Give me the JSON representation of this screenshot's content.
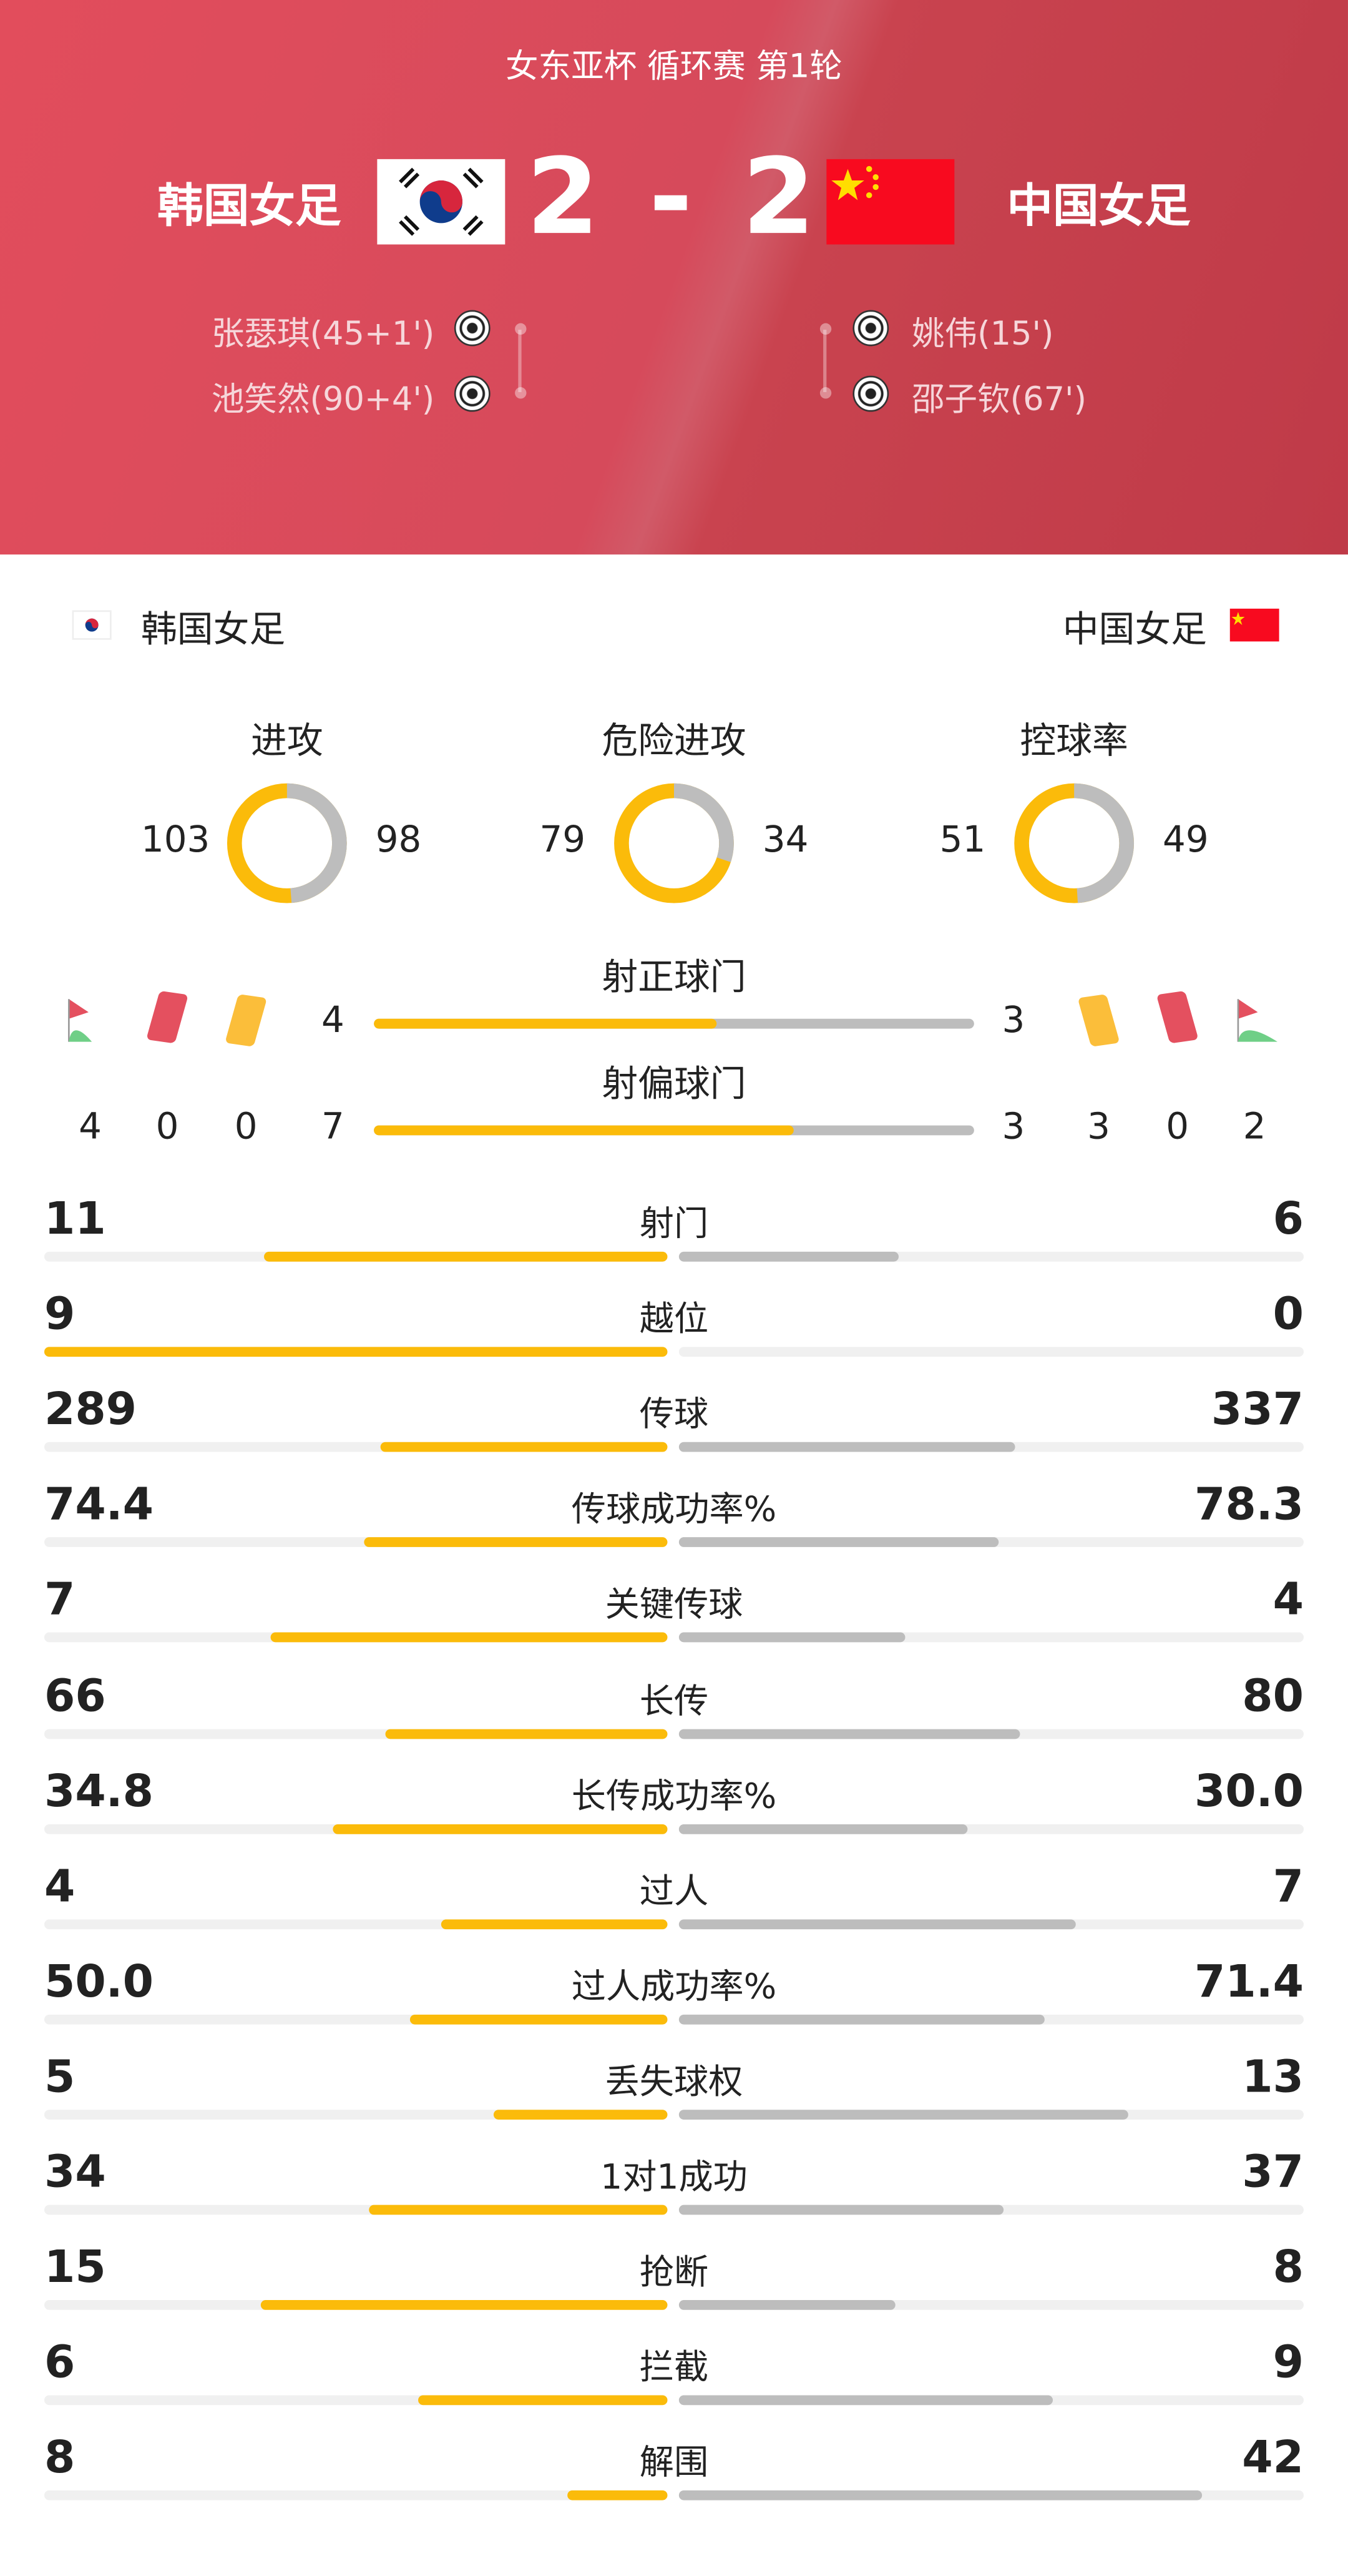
{
  "match": {
    "competition": "女东亚杯 循环赛 第1轮",
    "home": {
      "name": "韩国女足",
      "score": "2",
      "flag": "south-korea-flag"
    },
    "away": {
      "name": "中国女足",
      "score": "2",
      "flag": "china-flag"
    },
    "score_separator": "-",
    "home_scorers": [
      "张瑟琪(45+1')",
      "池笑然(90+4')"
    ],
    "away_scorers": [
      "姚伟(15')",
      "邵子钦(67')"
    ]
  },
  "colors": {
    "home_bar": "#fbbb0a",
    "away_bar": "#bdbdbd",
    "header_red": "#d64a5b",
    "yellow_card": "#fbbe3a",
    "red_card": "#e4505f",
    "corner_flag": "#e4505f"
  },
  "donuts": [
    {
      "label": "进攻",
      "home": 103,
      "away": 98
    },
    {
      "label": "危险进攻",
      "home": 79,
      "away": 34
    },
    {
      "label": "控球率",
      "home": 51,
      "away": 49
    }
  ],
  "shots_on_target": {
    "label": "射正球门",
    "home": 4,
    "away": 3
  },
  "shots_off_target": {
    "label": "射偏球门",
    "home": 7,
    "away": 3
  },
  "events": {
    "home": {
      "corners": 4,
      "red_cards": 0,
      "yellow_cards": 0
    },
    "away": {
      "yellow_cards": 3,
      "red_cards": 0,
      "corners": 2
    }
  },
  "stats": [
    {
      "label": "射门",
      "home": "11",
      "away": "6"
    },
    {
      "label": "越位",
      "home": "9",
      "away": "0"
    },
    {
      "label": "传球",
      "home": "289",
      "away": "337"
    },
    {
      "label": "传球成功率%",
      "home": "74.4",
      "away": "78.3"
    },
    {
      "label": "关键传球",
      "home": "7",
      "away": "4"
    },
    {
      "label": "长传",
      "home": "66",
      "away": "80"
    },
    {
      "label": "长传成功率%",
      "home": "34.8",
      "away": "30.0"
    },
    {
      "label": "过人",
      "home": "4",
      "away": "7"
    },
    {
      "label": "过人成功率%",
      "home": "50.0",
      "away": "71.4"
    },
    {
      "label": "丢失球权",
      "home": "5",
      "away": "13"
    },
    {
      "label": "1对1成功",
      "home": "34",
      "away": "37"
    },
    {
      "label": "抢断",
      "home": "15",
      "away": "8"
    },
    {
      "label": "拦截",
      "home": "6",
      "away": "9"
    },
    {
      "label": "解围",
      "home": "8",
      "away": "42"
    }
  ]
}
